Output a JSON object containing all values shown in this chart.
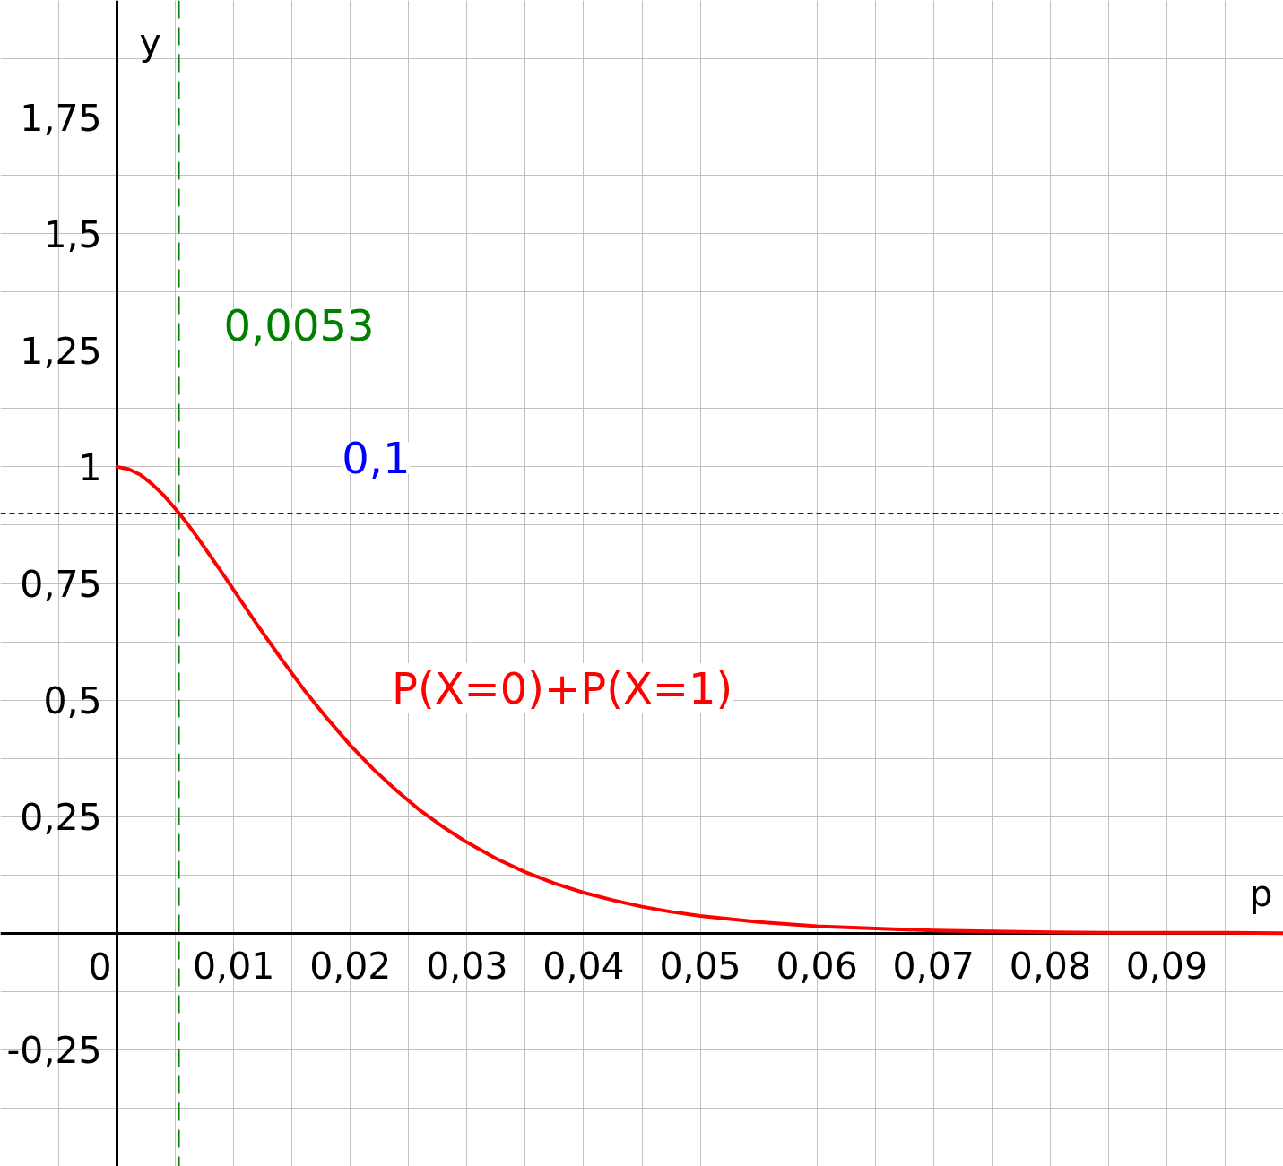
{
  "chart_data": {
    "type": "line",
    "xlabel": "p",
    "ylabel": "y",
    "x": [
      0,
      0.001,
      0.002,
      0.003,
      0.004,
      0.005,
      0.006,
      0.007,
      0.008,
      0.009,
      0.01,
      0.012,
      0.014,
      0.016,
      0.018,
      0.02,
      0.022,
      0.024,
      0.026,
      0.028,
      0.03,
      0.0325,
      0.035,
      0.0375,
      0.04,
      0.0425,
      0.045,
      0.0475,
      0.05,
      0.055,
      0.06,
      0.065,
      0.07,
      0.075,
      0.08,
      0.085,
      0.09,
      0.095,
      0.1
    ],
    "series": [
      {
        "name": "P(X=0)+P(X=1)",
        "color": "#ff0000",
        "values": [
          1,
          0.995,
          0.983,
          0.963,
          0.939,
          0.91,
          0.879,
          0.845,
          0.809,
          0.773,
          0.736,
          0.662,
          0.591,
          0.523,
          0.461,
          0.403,
          0.351,
          0.305,
          0.263,
          0.227,
          0.195,
          0.16,
          0.131,
          0.107,
          0.087,
          0.071,
          0.057,
          0.046,
          0.037,
          0.024,
          0.015,
          0.01,
          0.006,
          0.004,
          0.002,
          0.001,
          0.001,
          0.001,
          0.0
        ]
      }
    ],
    "xlim": [
      -0.01,
      0.1
    ],
    "ylim": [
      -0.5,
      2
    ],
    "xticks": [
      0,
      {
        "value": 0.01,
        "label": "0,01"
      },
      {
        "value": 0.02,
        "label": "0,02"
      },
      {
        "value": 0.03,
        "label": "0,03"
      },
      {
        "value": 0.04,
        "label": "0,04"
      },
      {
        "value": 0.05,
        "label": "0,05"
      },
      {
        "value": 0.06,
        "label": "0,06"
      },
      {
        "value": 0.07,
        "label": "0,07"
      },
      {
        "value": 0.08,
        "label": "0,08"
      },
      {
        "value": 0.09,
        "label": "0,09"
      }
    ],
    "yticks": [
      {
        "value": -0.25,
        "label": "-0,25"
      },
      {
        "value": 0.25,
        "label": "0,25"
      },
      {
        "value": 0.5,
        "label": "0,5"
      },
      {
        "value": 0.75,
        "label": "0,75"
      },
      1,
      {
        "value": 1.25,
        "label": "1,25"
      },
      {
        "value": 1.5,
        "label": "1,5"
      },
      {
        "value": 1.75,
        "label": "1,75"
      }
    ],
    "grid": true,
    "line_style": "solid",
    "ref_lines": [
      {
        "axis": "x",
        "value": 0.0053,
        "label": "0,0053",
        "color": "#008000",
        "line_style": "dashed"
      },
      {
        "axis": "y",
        "value": 0.9,
        "color": "#0000ff",
        "line_style": "dotted"
      }
    ],
    "annotations": [
      {
        "text": "0,1",
        "x": 0.0222,
        "y": 0.9
      }
    ]
  }
}
